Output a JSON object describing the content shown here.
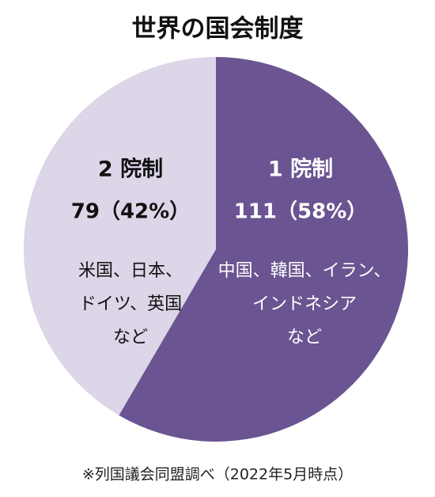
{
  "chart_data": {
    "type": "pie",
    "title": "世界の国会制度",
    "categories": [
      "1 院制",
      "2 院制"
    ],
    "values": [
      111,
      79
    ],
    "value_labels": [
      "111（58%）",
      "79（42%）"
    ],
    "colors": [
      "#6a5491",
      "#ddd5e8"
    ],
    "descriptions": [
      [
        "中国、韓国、イラン、",
        "インドネシア",
        "など"
      ],
      [
        "米国、日本、",
        "ドイツ、英国",
        "など"
      ]
    ],
    "source": "※列国議会同盟調べ（2022年5月時点）"
  }
}
